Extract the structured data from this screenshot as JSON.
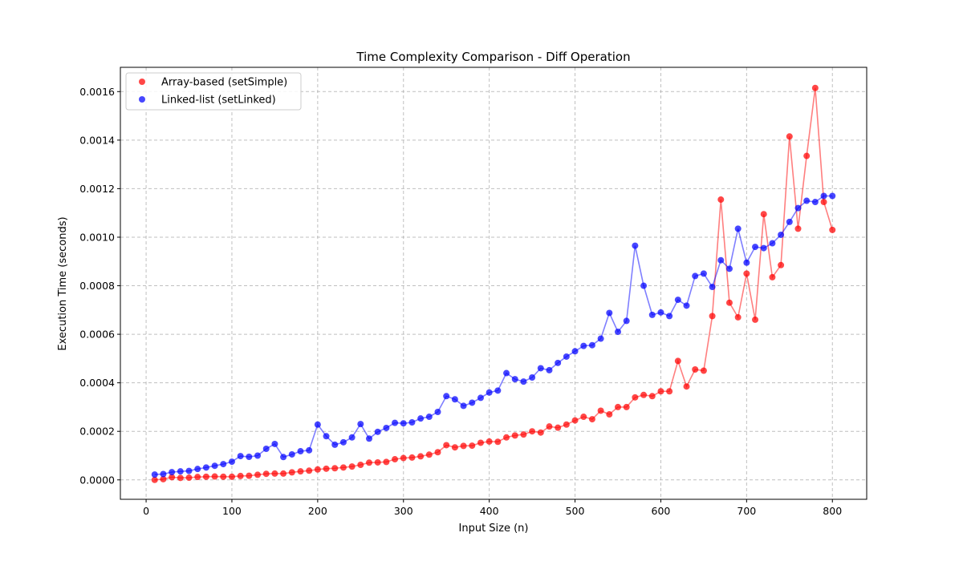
{
  "chart_data": {
    "type": "scatter",
    "title": "Time Complexity Comparison - Diff Operation",
    "xlabel": "Input Size (n)",
    "ylabel": "Execution Time (seconds)",
    "xlim": [
      -30,
      840
    ],
    "ylim": [
      -8e-05,
      0.0017
    ],
    "xticks": [
      0,
      100,
      200,
      300,
      400,
      500,
      600,
      700,
      800
    ],
    "yticks": [
      0,
      0.0002,
      0.0004,
      0.0006,
      0.0008,
      0.001,
      0.0012,
      0.0014,
      0.0016
    ],
    "xtick_labels": [
      "0",
      "100",
      "200",
      "300",
      "400",
      "500",
      "600",
      "700",
      "800"
    ],
    "ytick_labels": [
      "0.0000",
      "0.0002",
      "0.0004",
      "0.0006",
      "0.0008",
      "0.0010",
      "0.0012",
      "0.0014",
      "0.0016"
    ],
    "grid": true,
    "legend_position": "top-left",
    "x": [
      10,
      20,
      30,
      40,
      50,
      60,
      70,
      80,
      90,
      100,
      110,
      120,
      130,
      140,
      150,
      160,
      170,
      180,
      190,
      200,
      210,
      220,
      230,
      240,
      250,
      260,
      270,
      280,
      290,
      300,
      310,
      320,
      330,
      340,
      350,
      360,
      370,
      380,
      390,
      400,
      410,
      420,
      430,
      440,
      450,
      460,
      470,
      480,
      490,
      500,
      510,
      520,
      530,
      540,
      550,
      560,
      570,
      580,
      590,
      600,
      610,
      620,
      630,
      640,
      650,
      660,
      670,
      680,
      690,
      700,
      710,
      720,
      730,
      740,
      750,
      760,
      770,
      780,
      790,
      800
    ],
    "series": [
      {
        "name": "Array-based (setSimple)",
        "color": "#ff0000",
        "values": [
          0.0,
          3e-06,
          1.1e-05,
          8e-06,
          9e-06,
          1.2e-05,
          1.3e-05,
          1.4e-05,
          1.3e-05,
          1.3e-05,
          1.6e-05,
          1.7e-05,
          2.1e-05,
          2.5e-05,
          2.6e-05,
          2.6e-05,
          3.1e-05,
          3.5e-05,
          3.8e-05,
          4.3e-05,
          4.6e-05,
          4.8e-05,
          5.1e-05,
          5.5e-05,
          6.2e-05,
          7.1e-05,
          7.2e-05,
          7.4e-05,
          8.5e-05,
          9e-05,
          9.2e-05,
          9.7e-05,
          0.000104,
          0.000114,
          0.000143,
          0.000134,
          0.00014,
          0.000141,
          0.000153,
          0.000158,
          0.000157,
          0.000175,
          0.000183,
          0.000187,
          0.0002,
          0.000195,
          0.00022,
          0.000215,
          0.000228,
          0.000245,
          0.00026,
          0.00025,
          0.000285,
          0.00027,
          0.0003,
          0.0003,
          0.00034,
          0.00035,
          0.000345,
          0.000365,
          0.000365,
          0.00049,
          0.000385,
          0.000455,
          0.00045,
          0.000675,
          0.001155,
          0.00073,
          0.00067,
          0.00085,
          0.00066,
          0.001095,
          0.000835,
          0.000885,
          0.001415,
          0.001035,
          0.001335,
          0.001615,
          0.001145,
          0.00103
        ]
      },
      {
        "name": "Linked-list (setLinked)",
        "color": "#0000ff",
        "values": [
          2.2e-05,
          2.4e-05,
          3.2e-05,
          3.5e-05,
          3.7e-05,
          4.5e-05,
          5.1e-05,
          5.8e-05,
          6.5e-05,
          7.5e-05,
          9.8e-05,
          9.5e-05,
          0.0001,
          0.000128,
          0.000148,
          9.4e-05,
          0.000105,
          0.000118,
          0.000122,
          0.000228,
          0.00018,
          0.000145,
          0.000155,
          0.000175,
          0.00023,
          0.00017,
          0.000198,
          0.000214,
          0.000235,
          0.000233,
          0.000237,
          0.000253,
          0.00026,
          0.00028,
          0.000345,
          0.000332,
          0.000305,
          0.000318,
          0.000338,
          0.00036,
          0.000368,
          0.00044,
          0.000415,
          0.000405,
          0.000422,
          0.00046,
          0.000452,
          0.000482,
          0.000508,
          0.00053,
          0.000552,
          0.000555,
          0.000582,
          0.000688,
          0.00061,
          0.000655,
          0.000965,
          0.0008,
          0.00068,
          0.00069,
          0.000675,
          0.000742,
          0.000718,
          0.00084,
          0.00085,
          0.000795,
          0.000905,
          0.00087,
          0.001035,
          0.000895,
          0.00096,
          0.000955,
          0.000975,
          0.00101,
          0.001063,
          0.00112,
          0.00115,
          0.001145,
          0.00117,
          0.00117
        ]
      }
    ]
  }
}
